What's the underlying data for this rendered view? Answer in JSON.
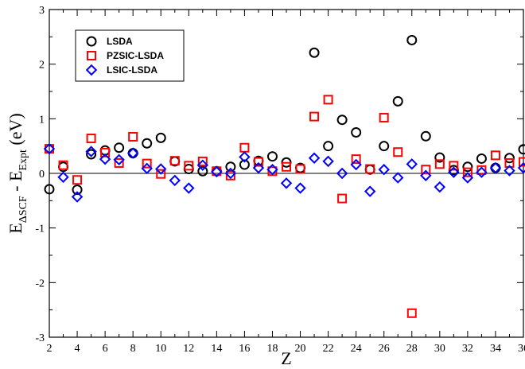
{
  "chart_data": {
    "type": "scatter",
    "title": "",
    "xlabel": "Z",
    "ylabel_parts": {
      "main": "E",
      "sub1": "ΔSCF",
      "mid": " - E",
      "sub2": "Expt",
      "unit": " (eV)"
    },
    "xlim": [
      2,
      36
    ],
    "ylim": [
      -3,
      3
    ],
    "xticks": [
      2,
      4,
      6,
      8,
      10,
      12,
      14,
      16,
      18,
      20,
      22,
      24,
      26,
      28,
      30,
      32,
      34,
      36
    ],
    "yticks": [
      -3,
      -2,
      -1,
      0,
      1,
      2,
      3
    ],
    "zero_line": true,
    "grid": false,
    "legend_position": "top-left",
    "series": [
      {
        "name": "LSDA",
        "marker": "circle",
        "color": "#000000",
        "points": [
          [
            2,
            -0.29
          ],
          [
            3,
            0.12
          ],
          [
            4,
            -0.3
          ],
          [
            5,
            0.35
          ],
          [
            6,
            0.42
          ],
          [
            7,
            0.47
          ],
          [
            8,
            0.37
          ],
          [
            9,
            0.55
          ],
          [
            10,
            0.65
          ],
          [
            11,
            0.22
          ],
          [
            12,
            0.08
          ],
          [
            13,
            0.04
          ],
          [
            14,
            0.04
          ],
          [
            15,
            0.12
          ],
          [
            16,
            0.16
          ],
          [
            17,
            0.23
          ],
          [
            18,
            0.31
          ],
          [
            19,
            0.2
          ],
          [
            20,
            0.1
          ],
          [
            21,
            2.21
          ],
          [
            22,
            0.5
          ],
          [
            23,
            0.98
          ],
          [
            24,
            0.75
          ],
          [
            25,
            0.07
          ],
          [
            26,
            0.5
          ],
          [
            27,
            1.32
          ],
          [
            28,
            2.44
          ],
          [
            29,
            0.68
          ],
          [
            30,
            0.29
          ],
          [
            31,
            0.06
          ],
          [
            32,
            0.12
          ],
          [
            33,
            0.27
          ],
          [
            34,
            0.1
          ],
          [
            35,
            0.28
          ],
          [
            36,
            0.44
          ]
        ]
      },
      {
        "name": "PZSIC-LSDA",
        "marker": "square",
        "color": "#ff0000",
        "points": [
          [
            2,
            0.45
          ],
          [
            3,
            0.15
          ],
          [
            4,
            -0.12
          ],
          [
            5,
            0.64
          ],
          [
            6,
            0.38
          ],
          [
            7,
            0.19
          ],
          [
            8,
            0.67
          ],
          [
            9,
            0.18
          ],
          [
            10,
            -0.01
          ],
          [
            11,
            0.23
          ],
          [
            12,
            0.14
          ],
          [
            13,
            0.22
          ],
          [
            14,
            0.04
          ],
          [
            15,
            -0.04
          ],
          [
            16,
            0.47
          ],
          [
            17,
            0.21
          ],
          [
            18,
            0.04
          ],
          [
            19,
            0.12
          ],
          [
            20,
            0.08
          ],
          [
            21,
            1.04
          ],
          [
            22,
            1.35
          ],
          [
            23,
            -0.46
          ],
          [
            24,
            0.26
          ],
          [
            25,
            0.08
          ],
          [
            26,
            1.02
          ],
          [
            27,
            0.39
          ],
          [
            28,
            -2.56
          ],
          [
            29,
            0.07
          ],
          [
            30,
            0.17
          ],
          [
            31,
            0.14
          ],
          [
            32,
            0.02
          ],
          [
            33,
            0.06
          ],
          [
            34,
            0.33
          ],
          [
            35,
            0.19
          ],
          [
            36,
            0.21
          ]
        ]
      },
      {
        "name": "LSIC-LSDA",
        "marker": "diamond",
        "color": "#0000ff",
        "points": [
          [
            2,
            0.45
          ],
          [
            3,
            -0.07
          ],
          [
            4,
            -0.43
          ],
          [
            5,
            0.4
          ],
          [
            6,
            0.26
          ],
          [
            7,
            0.25
          ],
          [
            8,
            0.37
          ],
          [
            9,
            0.09
          ],
          [
            10,
            0.08
          ],
          [
            11,
            -0.13
          ],
          [
            12,
            -0.27
          ],
          [
            13,
            0.15
          ],
          [
            14,
            0.03
          ],
          [
            15,
            0.0
          ],
          [
            16,
            0.3
          ],
          [
            17,
            0.1
          ],
          [
            18,
            0.07
          ],
          [
            19,
            -0.18
          ],
          [
            20,
            -0.27
          ],
          [
            21,
            0.28
          ],
          [
            22,
            0.22
          ],
          [
            23,
            0.0
          ],
          [
            24,
            0.16
          ],
          [
            25,
            -0.33
          ],
          [
            26,
            0.07
          ],
          [
            27,
            -0.08
          ],
          [
            28,
            0.17
          ],
          [
            29,
            -0.04
          ],
          [
            30,
            -0.25
          ],
          [
            31,
            0.02
          ],
          [
            32,
            -0.08
          ],
          [
            33,
            0.02
          ],
          [
            34,
            0.1
          ],
          [
            35,
            0.05
          ],
          [
            36,
            0.1
          ]
        ]
      }
    ]
  }
}
